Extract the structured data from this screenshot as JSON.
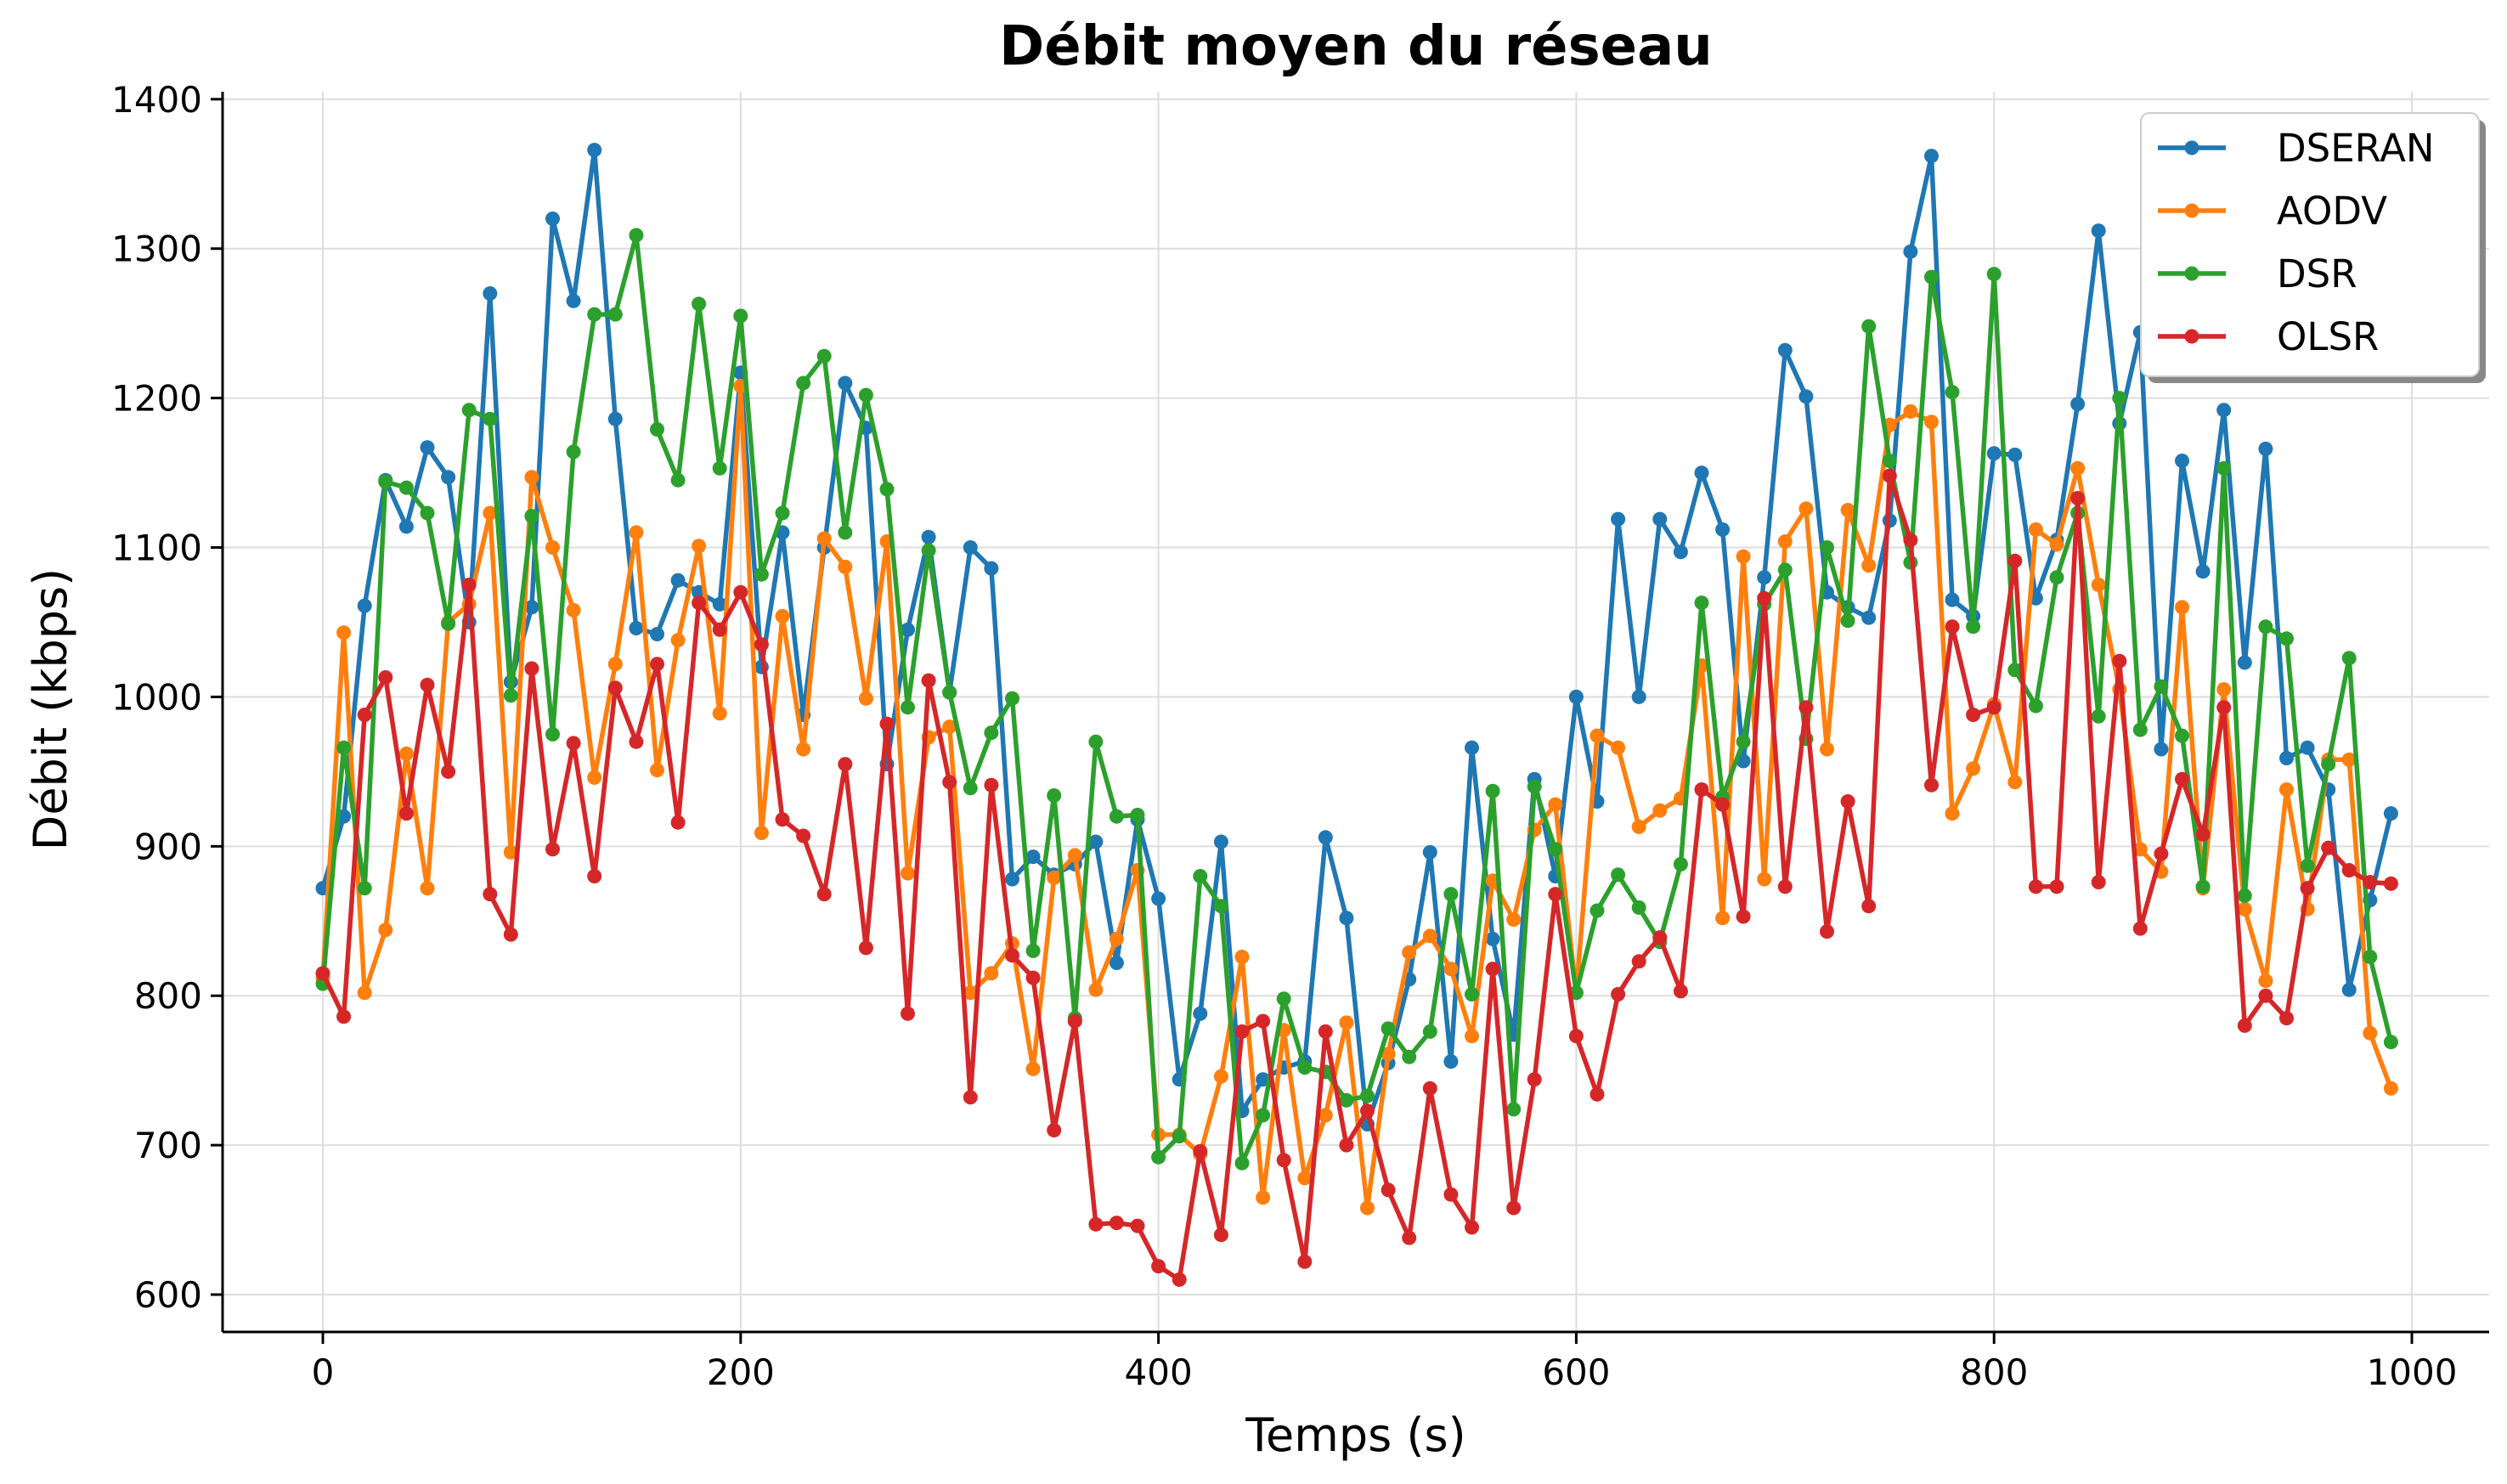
{
  "chart_data": {
    "type": "line",
    "title": "Débit moyen du réseau",
    "xlabel": "Temps (s)",
    "ylabel": "Débit (kbps)",
    "xlim": [
      -48,
      1037
    ],
    "ylim": [
      575,
      1405
    ],
    "xticks": [
      0,
      200,
      400,
      600,
      800,
      1000
    ],
    "yticks": [
      600,
      700,
      800,
      900,
      1000,
      1100,
      1200,
      1300,
      1400
    ],
    "grid": true,
    "legend_position": "top-right",
    "x": [
      0,
      10,
      20,
      30,
      40,
      50,
      60,
      70,
      80,
      90,
      100,
      110,
      120,
      130,
      140,
      150,
      160,
      170,
      180,
      190,
      200,
      210,
      220,
      230,
      240,
      250,
      260,
      270,
      280,
      290,
      300,
      310,
      320,
      330,
      340,
      350,
      360,
      370,
      380,
      390,
      400,
      410,
      420,
      430,
      440,
      450,
      460,
      470,
      480,
      490,
      500,
      510,
      520,
      530,
      540,
      550,
      560,
      570,
      580,
      590,
      600,
      610,
      620,
      630,
      640,
      650,
      660,
      670,
      680,
      690,
      700,
      710,
      720,
      730,
      740,
      750,
      760,
      770,
      780,
      790,
      800,
      810,
      820,
      830,
      840,
      850,
      860,
      870,
      880,
      890,
      900,
      910,
      920,
      930,
      940,
      950,
      960,
      970,
      980,
      990
    ],
    "series": [
      {
        "name": "DSERAN",
        "color": "#1f77b4",
        "values": [
          872,
          920,
          1061,
          1145,
          1114,
          1167,
          1147,
          1050,
          1270,
          1010,
          1060,
          1320,
          1265,
          1366,
          1186,
          1046,
          1042,
          1078,
          1070,
          1062,
          1217,
          1020,
          1110,
          988,
          1100,
          1210,
          1180,
          955,
          1045,
          1107,
          1003,
          1100,
          1086,
          878,
          893,
          881,
          888,
          903,
          822,
          918,
          865,
          744,
          788,
          903,
          723,
          744,
          752,
          756,
          906,
          852,
          714,
          755,
          811,
          896,
          756,
          966,
          838,
          774,
          945,
          880,
          1000,
          930,
          1119,
          1000,
          1119,
          1097,
          1150,
          1112,
          957,
          1080,
          1232,
          1201,
          1070,
          1060,
          1053,
          1118,
          1298,
          1362,
          1065,
          1054,
          1163,
          1162,
          1066,
          1105,
          1196,
          1312,
          1183,
          1244,
          965,
          1158,
          1084,
          1192,
          1023,
          1166,
          959,
          966,
          938,
          804,
          864,
          922
        ]
      },
      {
        "name": "AODV",
        "color": "#ff7f0e",
        "values": [
          812,
          1043,
          802,
          844,
          962,
          872,
          1050,
          1062,
          1123,
          896,
          1147,
          1100,
          1058,
          946,
          1022,
          1110,
          951,
          1038,
          1101,
          989,
          1208,
          909,
          1054,
          965,
          1106,
          1087,
          999,
          1104,
          882,
          973,
          980,
          802,
          815,
          835,
          751,
          879,
          894,
          804,
          838,
          884,
          707,
          707,
          694,
          746,
          826,
          665,
          777,
          678,
          720,
          782,
          658,
          761,
          829,
          840,
          818,
          773,
          877,
          851,
          911,
          928,
          802,
          974,
          966,
          913,
          924,
          932,
          1021,
          852,
          1094,
          878,
          1104,
          1126,
          965,
          1125,
          1088,
          1182,
          1191,
          1184,
          922,
          952,
          995,
          943,
          1112,
          1102,
          1153,
          1075,
          1005,
          898,
          883,
          1060,
          872,
          1005,
          858,
          810,
          938,
          858,
          958,
          958,
          775,
          738
        ]
      },
      {
        "name": "DSR",
        "color": "#2ca02c",
        "values": [
          808,
          966,
          872,
          1144,
          1140,
          1123,
          1049,
          1192,
          1186,
          1001,
          1121,
          975,
          1164,
          1256,
          1256,
          1309,
          1179,
          1145,
          1263,
          1153,
          1255,
          1082,
          1123,
          1210,
          1228,
          1110,
          1202,
          1139,
          993,
          1098,
          1003,
          939,
          976,
          999,
          830,
          934,
          785,
          970,
          920,
          921,
          692,
          706,
          880,
          860,
          688,
          720,
          798,
          752,
          749,
          730,
          733,
          778,
          759,
          776,
          868,
          801,
          937,
          724,
          940,
          898,
          802,
          857,
          881,
          859,
          836,
          888,
          1063,
          933,
          970,
          1062,
          1085,
          972,
          1100,
          1051,
          1248,
          1158,
          1090,
          1281,
          1204,
          1047,
          1283,
          1018,
          994,
          1080,
          1123,
          987,
          1200,
          978,
          1007,
          974,
          873,
          1153,
          867,
          1047,
          1039,
          887,
          955,
          1026,
          826,
          769
        ]
      },
      {
        "name": "OLSR",
        "color": "#d62728",
        "values": [
          815,
          786,
          988,
          1013,
          922,
          1008,
          950,
          1075,
          868,
          841,
          1019,
          898,
          969,
          880,
          1006,
          970,
          1022,
          916,
          1063,
          1045,
          1070,
          1035,
          918,
          907,
          868,
          955,
          832,
          982,
          788,
          1011,
          943,
          732,
          941,
          827,
          812,
          710,
          783,
          647,
          648,
          646,
          619,
          610,
          696,
          640,
          776,
          783,
          690,
          622,
          776,
          700,
          723,
          670,
          638,
          738,
          667,
          645,
          818,
          658,
          744,
          868,
          773,
          734,
          801,
          823,
          839,
          803,
          938,
          928,
          853,
          1066,
          873,
          993,
          843,
          930,
          860,
          1148,
          1105,
          941,
          1047,
          988,
          993,
          1091,
          873,
          873,
          1133,
          876,
          1024,
          845,
          895,
          945,
          908,
          993,
          780,
          800,
          785,
          872,
          899,
          884,
          876,
          875
        ]
      }
    ]
  }
}
